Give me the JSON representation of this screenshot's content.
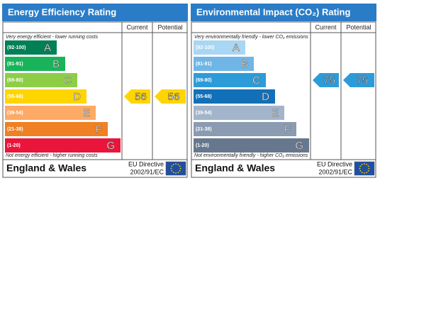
{
  "panels": [
    {
      "title": "Energy Efficiency Rating",
      "columns": [
        "Current",
        "Potential"
      ],
      "top_note": "Very energy efficient - lower running costs",
      "bottom_note": "Not energy efficient - higher running costs",
      "bands": [
        {
          "range": "(92-100)",
          "letter": "A",
          "color": "#008054"
        },
        {
          "range": "(81-91)",
          "letter": "B",
          "color": "#19b459"
        },
        {
          "range": "(69-80)",
          "letter": "C",
          "color": "#8dce46"
        },
        {
          "range": "(55-68)",
          "letter": "D",
          "color": "#ffd500"
        },
        {
          "range": "(39-54)",
          "letter": "E",
          "color": "#fcaa65"
        },
        {
          "range": "(21-38)",
          "letter": "F",
          "color": "#ef8023"
        },
        {
          "range": "(1-20)",
          "letter": "G",
          "color": "#e9153b"
        }
      ],
      "current": 56,
      "potential": 56,
      "footer": "England & Wales",
      "directive": [
        "EU Directive",
        "2002/91/EC"
      ]
    },
    {
      "title": "Environmental Impact (CO₂) Rating",
      "columns": [
        "Current",
        "Potential"
      ],
      "top_note": "Very environmentally friendly - lower CO₂ emissions",
      "bottom_note": "Not environmentally friendly - higher CO₂ emissions",
      "bands": [
        {
          "range": "(92-100)",
          "letter": "A",
          "color": "#a9d6f2"
        },
        {
          "range": "(81-91)",
          "letter": "B",
          "color": "#6fb6e6"
        },
        {
          "range": "(69-80)",
          "letter": "C",
          "color": "#2e9bd9"
        },
        {
          "range": "(55-68)",
          "letter": "D",
          "color": "#1270b8"
        },
        {
          "range": "(39-54)",
          "letter": "E",
          "color": "#a3b5ca"
        },
        {
          "range": "(21-38)",
          "letter": "F",
          "color": "#8a9bb2"
        },
        {
          "range": "(1-20)",
          "letter": "G",
          "color": "#67778d"
        }
      ],
      "current": 75,
      "potential": 75,
      "footer": "England & Wales",
      "directive": [
        "EU Directive",
        "2002/91/EC"
      ]
    }
  ]
}
